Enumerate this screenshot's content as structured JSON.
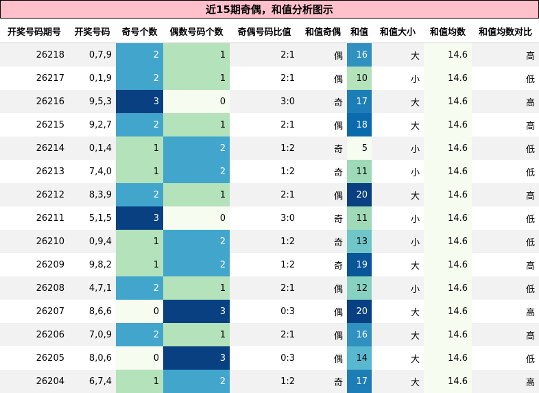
{
  "title": "近15期奇偶，和值分析图示",
  "headers": [
    "开奖号码期号",
    "开奖号码",
    "奇号个数",
    "偶数号码个数",
    "奇偶号码比值",
    "和值奇偶",
    "和值",
    "和值大小",
    "和值均数",
    "和值均数对比"
  ],
  "colors": {
    "title_bg": "#ffc0cb",
    "heat_low": "#f7fcf0",
    "heat_mid": "#b3e0b7",
    "heat_high": "#0a4a8c"
  },
  "chart_data": {
    "type": "table",
    "rows": [
      {
        "period": "26218",
        "numbers": "0,7,9",
        "odd_count": 2,
        "even_count": 1,
        "ratio": "2:1",
        "sum_parity": "偶",
        "sum": 16,
        "sum_size": "大",
        "sum_mean": "14.6",
        "mean_compare": "高"
      },
      {
        "period": "26217",
        "numbers": "0,1,9",
        "odd_count": 2,
        "even_count": 1,
        "ratio": "2:1",
        "sum_parity": "偶",
        "sum": 10,
        "sum_size": "小",
        "sum_mean": "14.6",
        "mean_compare": "低"
      },
      {
        "period": "26216",
        "numbers": "9,5,3",
        "odd_count": 3,
        "even_count": 0,
        "ratio": "3:0",
        "sum_parity": "奇",
        "sum": 17,
        "sum_size": "大",
        "sum_mean": "14.6",
        "mean_compare": "高"
      },
      {
        "period": "26215",
        "numbers": "9,2,7",
        "odd_count": 2,
        "even_count": 1,
        "ratio": "2:1",
        "sum_parity": "偶",
        "sum": 18,
        "sum_size": "大",
        "sum_mean": "14.6",
        "mean_compare": "高"
      },
      {
        "period": "26214",
        "numbers": "0,1,4",
        "odd_count": 1,
        "even_count": 2,
        "ratio": "1:2",
        "sum_parity": "奇",
        "sum": 5,
        "sum_size": "小",
        "sum_mean": "14.6",
        "mean_compare": "低"
      },
      {
        "period": "26213",
        "numbers": "7,4,0",
        "odd_count": 1,
        "even_count": 2,
        "ratio": "1:2",
        "sum_parity": "奇",
        "sum": 11,
        "sum_size": "小",
        "sum_mean": "14.6",
        "mean_compare": "低"
      },
      {
        "period": "26212",
        "numbers": "8,3,9",
        "odd_count": 2,
        "even_count": 1,
        "ratio": "2:1",
        "sum_parity": "偶",
        "sum": 20,
        "sum_size": "大",
        "sum_mean": "14.6",
        "mean_compare": "高"
      },
      {
        "period": "26211",
        "numbers": "5,1,5",
        "odd_count": 3,
        "even_count": 0,
        "ratio": "3:0",
        "sum_parity": "奇",
        "sum": 11,
        "sum_size": "小",
        "sum_mean": "14.6",
        "mean_compare": "低"
      },
      {
        "period": "26210",
        "numbers": "0,9,4",
        "odd_count": 1,
        "even_count": 2,
        "ratio": "1:2",
        "sum_parity": "奇",
        "sum": 13,
        "sum_size": "小",
        "sum_mean": "14.6",
        "mean_compare": "低"
      },
      {
        "period": "26209",
        "numbers": "9,8,2",
        "odd_count": 1,
        "even_count": 2,
        "ratio": "1:2",
        "sum_parity": "奇",
        "sum": 19,
        "sum_size": "大",
        "sum_mean": "14.6",
        "mean_compare": "高"
      },
      {
        "period": "26208",
        "numbers": "4,7,1",
        "odd_count": 2,
        "even_count": 1,
        "ratio": "2:1",
        "sum_parity": "偶",
        "sum": 12,
        "sum_size": "小",
        "sum_mean": "14.6",
        "mean_compare": "低"
      },
      {
        "period": "26207",
        "numbers": "8,6,6",
        "odd_count": 0,
        "even_count": 3,
        "ratio": "0:3",
        "sum_parity": "偶",
        "sum": 20,
        "sum_size": "大",
        "sum_mean": "14.6",
        "mean_compare": "高"
      },
      {
        "period": "26206",
        "numbers": "7,0,9",
        "odd_count": 2,
        "even_count": 1,
        "ratio": "2:1",
        "sum_parity": "偶",
        "sum": 16,
        "sum_size": "大",
        "sum_mean": "14.6",
        "mean_compare": "高"
      },
      {
        "period": "26205",
        "numbers": "8,0,6",
        "odd_count": 0,
        "even_count": 3,
        "ratio": "0:3",
        "sum_parity": "偶",
        "sum": 14,
        "sum_size": "大",
        "sum_mean": "14.6",
        "mean_compare": "低"
      },
      {
        "period": "26204",
        "numbers": "6,7,4",
        "odd_count": 1,
        "even_count": 2,
        "ratio": "1:2",
        "sum_parity": "奇",
        "sum": 17,
        "sum_size": "大",
        "sum_mean": "14.6",
        "mean_compare": "高"
      }
    ]
  }
}
